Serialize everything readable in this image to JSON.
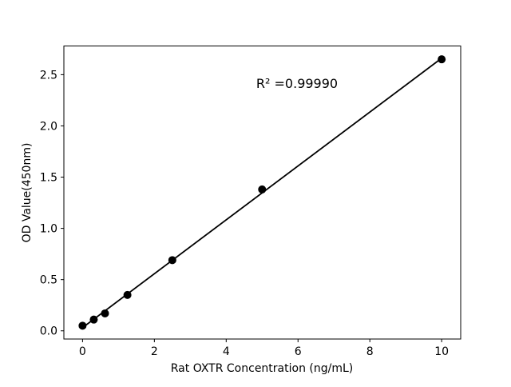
{
  "chart_data": {
    "type": "scatter",
    "title": "",
    "xlabel": "Rat OXTR Concentration (ng/mL)",
    "ylabel": "OD Value(450nm)",
    "series": [
      {
        "name": "standard-points",
        "x": [
          0,
          0.3125,
          0.625,
          1.25,
          2.5,
          5,
          10
        ],
        "y": [
          0.05,
          0.11,
          0.17,
          0.35,
          0.69,
          1.38,
          2.65
        ],
        "marker": "circle",
        "color": "#000000"
      }
    ],
    "fit_line": {
      "type": "linear",
      "slope": 0.263,
      "intercept": 0.031,
      "x_start": 0,
      "x_end": 10,
      "color": "#000000"
    },
    "annotation": {
      "text": "R² =0.99990"
    },
    "axes": {
      "xticks": [
        0,
        2,
        4,
        6,
        8,
        10
      ],
      "xtick_labels": [
        "0",
        "2",
        "4",
        "6",
        "8",
        "10"
      ],
      "yticks": [
        0,
        0.5,
        1.0,
        1.5,
        2.0,
        2.5
      ],
      "ytick_labels": [
        "0.0",
        "0.5",
        "1.0",
        "1.5",
        "2.0",
        "2.5"
      ],
      "xlim": [
        -0.52,
        10.53
      ],
      "ylim": [
        -0.08,
        2.78
      ],
      "grid": false,
      "legend": "none"
    },
    "colors": {
      "marker": "#000000",
      "line": "#000000",
      "text": "#000000",
      "background": "#ffffff"
    }
  }
}
